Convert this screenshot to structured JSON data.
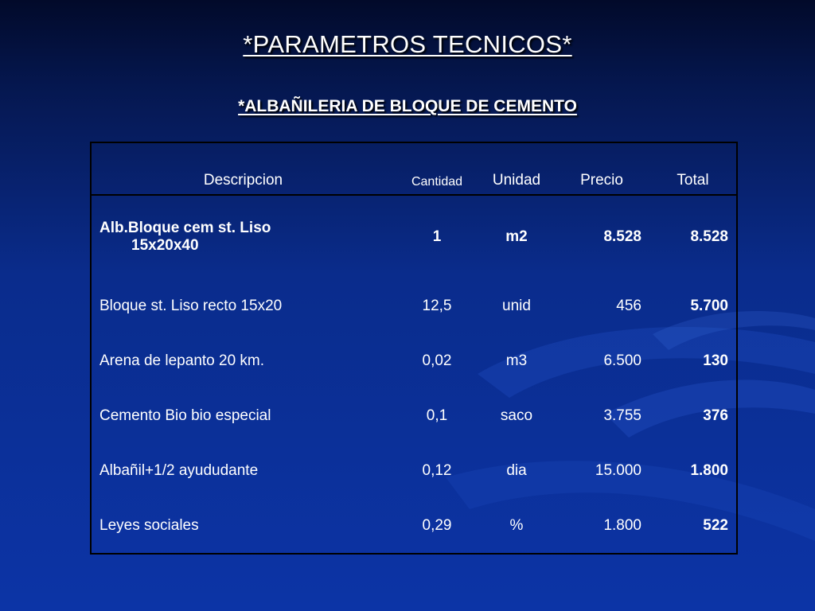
{
  "slide": {
    "title": "*PARAMETROS TECNICOS*",
    "subtitle": "*ALBAÑILERIA DE BLOQUE DE CEMENTO"
  },
  "table": {
    "headers": {
      "descripcion": "Descripcion",
      "cantidad": "Cantidad",
      "unidad": "Unidad",
      "precio": "Precio",
      "total": "Total"
    },
    "rows": [
      {
        "desc_line1": "Alb.Bloque cem st. Liso",
        "desc_line2": "15x20x40",
        "cantidad": "1",
        "unidad": "m2",
        "precio": "8.528",
        "total": "8.528"
      },
      {
        "desc": "Bloque  st. Liso recto 15x20",
        "cantidad": "12,5",
        "unidad": "unid",
        "precio": "456",
        "total": "5.700"
      },
      {
        "desc": "Arena de lepanto 20 km.",
        "cantidad": "0,02",
        "unidad": "m3",
        "precio": "6.500",
        "total": "130"
      },
      {
        "desc": "Cemento Bio bio especial",
        "cantidad": "0,1",
        "unidad": "saco",
        "precio": "3.755",
        "total": "376"
      },
      {
        "desc": "Albañil+1/2 ayududante",
        "cantidad": "0,12",
        "unidad": "dia",
        "precio": "15.000",
        "total": "1.800"
      },
      {
        "desc": "Leyes sociales",
        "cantidad": "0,29",
        "unidad": "%",
        "precio": "1.800",
        "total": "522"
      }
    ]
  },
  "colors": {
    "background_top": "#020a2a",
    "background_bottom": "#0c34a6",
    "text": "#ffffff",
    "table_border": "#000000"
  }
}
